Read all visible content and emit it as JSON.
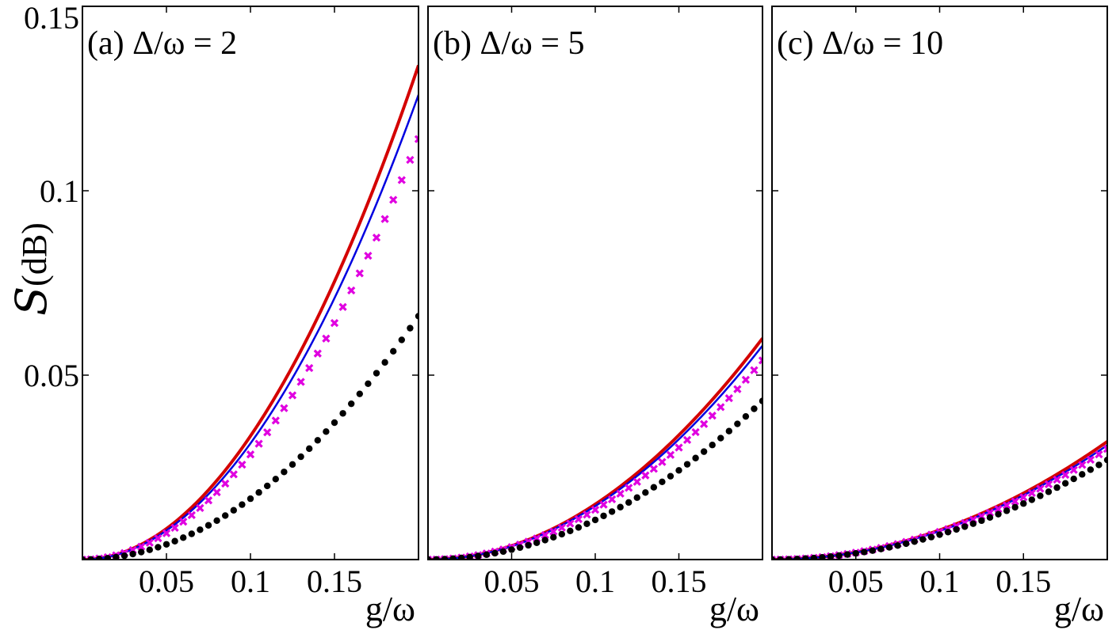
{
  "chart_data": {
    "type": "line",
    "shared_y_axis": {
      "label_symbol": "S",
      "label_unit": "(dB)",
      "ylim": [
        0,
        0.15
      ],
      "ticks": [
        0.05,
        0.1,
        0.15
      ],
      "tick_labels": [
        "0.05",
        "0.1",
        "0.15"
      ]
    },
    "series_styles": [
      {
        "name": "red-curve",
        "kind": "line",
        "color": "#d40000"
      },
      {
        "name": "blue-curve",
        "kind": "line",
        "color": "#0000e0"
      },
      {
        "name": "magenta-crosses",
        "kind": "cross",
        "color": "#e000e0"
      },
      {
        "name": "black-dots",
        "kind": "dot",
        "color": "#000000"
      }
    ],
    "panels": [
      {
        "id": "a",
        "title": "(a) Δ/ω = 2",
        "xlabel": "g/ω",
        "xlim": [
          0,
          0.2
        ],
        "xticks": [
          0.05,
          0.1,
          0.15
        ],
        "xtick_labels": [
          "0.05",
          "0.1",
          "0.15"
        ],
        "series": [
          {
            "name": "red-curve",
            "end_value": 0.134,
            "exponent": 2.0
          },
          {
            "name": "blue-curve",
            "end_value": 0.126,
            "exponent": 2.0
          },
          {
            "name": "magenta-crosses",
            "end_value": 0.114,
            "exponent": 2.0
          },
          {
            "name": "black-dots",
            "end_value": 0.066,
            "exponent": 2.0
          }
        ]
      },
      {
        "id": "b",
        "title": "(b) Δ/ω = 5",
        "xlabel": "g/ω",
        "xlim": [
          0,
          0.2
        ],
        "xticks": [
          0.05,
          0.1,
          0.15
        ],
        "xtick_labels": [
          "0.05",
          "0.1",
          "0.15"
        ],
        "series": [
          {
            "name": "red-curve",
            "end_value": 0.06,
            "exponent": 2.0
          },
          {
            "name": "blue-curve",
            "end_value": 0.058,
            "exponent": 2.0
          },
          {
            "name": "magenta-crosses",
            "end_value": 0.054,
            "exponent": 2.0
          },
          {
            "name": "black-dots",
            "end_value": 0.043,
            "exponent": 2.0
          }
        ]
      },
      {
        "id": "c",
        "title": "(c) Δ/ω = 10",
        "xlabel": "g/ω",
        "xlim": [
          0,
          0.2
        ],
        "xticks": [
          0.05,
          0.1,
          0.15
        ],
        "xtick_labels": [
          "0.05",
          "0.1",
          "0.15"
        ],
        "series": [
          {
            "name": "red-curve",
            "end_value": 0.032,
            "exponent": 2.0
          },
          {
            "name": "blue-curve",
            "end_value": 0.031,
            "exponent": 2.0
          },
          {
            "name": "magenta-crosses",
            "end_value": 0.03,
            "exponent": 2.0
          },
          {
            "name": "black-dots",
            "end_value": 0.027,
            "exponent": 2.0
          }
        ]
      }
    ]
  }
}
